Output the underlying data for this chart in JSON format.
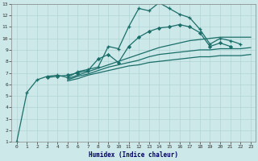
{
  "xlabel": "Humidex (Indice chaleur)",
  "ylabel": "",
  "bg_color": "#cce8e8",
  "grid_color": "#b0d4d4",
  "line_color": "#1a6e6a",
  "xlim": [
    -0.5,
    23.5
  ],
  "ylim": [
    1,
    13
  ],
  "xticks": [
    0,
    1,
    2,
    3,
    4,
    5,
    6,
    7,
    8,
    9,
    10,
    11,
    12,
    13,
    14,
    15,
    16,
    17,
    18,
    19,
    20,
    21,
    22,
    23
  ],
  "yticks": [
    1,
    2,
    3,
    4,
    5,
    6,
    7,
    8,
    9,
    10,
    11,
    12,
    13
  ],
  "series": [
    {
      "x": [
        0,
        1,
        2,
        3,
        4,
        5,
        6,
        7,
        8,
        9,
        10,
        11,
        12,
        13,
        14,
        15,
        16,
        17,
        18,
        19,
        20,
        21,
        22
      ],
      "y": [
        1.0,
        5.3,
        6.4,
        6.7,
        6.8,
        6.6,
        7.1,
        7.3,
        7.5,
        9.3,
        9.1,
        11.0,
        12.6,
        12.4,
        13.1,
        12.6,
        12.1,
        11.8,
        10.8,
        9.5,
        10.0,
        9.8,
        9.5
      ],
      "marker": "+"
    },
    {
      "x": [
        3,
        4,
        5,
        6,
        7,
        8,
        9,
        10,
        11,
        12,
        13,
        14,
        15,
        16,
        17,
        18,
        19,
        20,
        21
      ],
      "y": [
        6.6,
        6.7,
        6.8,
        7.0,
        7.2,
        8.2,
        8.6,
        7.9,
        9.3,
        10.1,
        10.6,
        10.9,
        11.0,
        11.2,
        11.0,
        10.5,
        9.3,
        9.6,
        9.3
      ],
      "marker": "D"
    },
    {
      "x": [
        5,
        6,
        7,
        8,
        9,
        10,
        11,
        12,
        13,
        14,
        15,
        16,
        17,
        18,
        19,
        20,
        21,
        22,
        23
      ],
      "y": [
        6.5,
        6.8,
        7.1,
        7.4,
        7.7,
        8.0,
        8.3,
        8.6,
        8.9,
        9.2,
        9.4,
        9.6,
        9.8,
        9.9,
        10.0,
        10.1,
        10.1,
        10.1,
        10.1
      ],
      "marker": null
    },
    {
      "x": [
        5,
        6,
        7,
        8,
        9,
        10,
        11,
        12,
        13,
        14,
        15,
        16,
        17,
        18,
        19,
        20,
        21,
        22,
        23
      ],
      "y": [
        6.4,
        6.7,
        6.9,
        7.2,
        7.5,
        7.7,
        7.9,
        8.1,
        8.4,
        8.6,
        8.7,
        8.8,
        8.9,
        9.0,
        9.0,
        9.1,
        9.1,
        9.1,
        9.2
      ],
      "marker": null
    },
    {
      "x": [
        5,
        6,
        7,
        8,
        9,
        10,
        11,
        12,
        13,
        14,
        15,
        16,
        17,
        18,
        19,
        20,
        21,
        22,
        23
      ],
      "y": [
        6.3,
        6.5,
        6.8,
        7.0,
        7.2,
        7.4,
        7.6,
        7.7,
        7.9,
        8.0,
        8.1,
        8.2,
        8.3,
        8.4,
        8.4,
        8.5,
        8.5,
        8.5,
        8.6
      ],
      "marker": null
    }
  ]
}
